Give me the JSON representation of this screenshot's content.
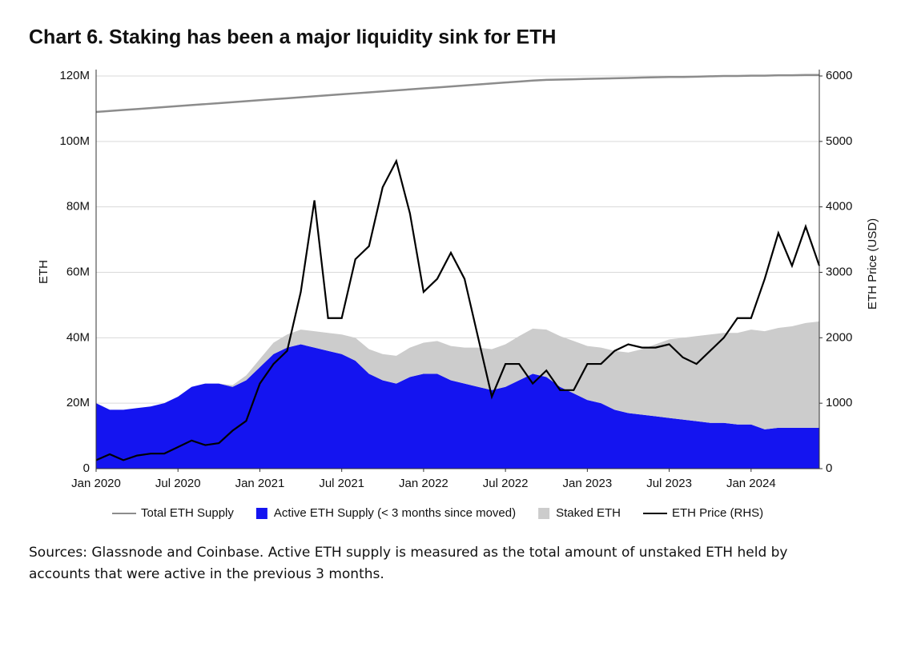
{
  "chart_data": {
    "type": "line",
    "title": "Chart 6. Staking has been a major liquidity sink for ETH",
    "ylabel": "ETH",
    "y2label": "ETH Price (USD)",
    "source": "Sources: Glassnode and Coinbase. Active ETH supply is measured as the total amount of unstaked ETH held by accounts that were active in the previous 3 months.",
    "x": [
      "2020-01",
      "2020-02",
      "2020-03",
      "2020-04",
      "2020-05",
      "2020-06",
      "2020-07",
      "2020-08",
      "2020-09",
      "2020-10",
      "2020-11",
      "2020-12",
      "2021-01",
      "2021-02",
      "2021-03",
      "2021-04",
      "2021-05",
      "2021-06",
      "2021-07",
      "2021-08",
      "2021-09",
      "2021-10",
      "2021-11",
      "2021-12",
      "2022-01",
      "2022-02",
      "2022-03",
      "2022-04",
      "2022-05",
      "2022-06",
      "2022-07",
      "2022-08",
      "2022-09",
      "2022-10",
      "2022-11",
      "2022-12",
      "2023-01",
      "2023-02",
      "2023-03",
      "2023-04",
      "2023-05",
      "2023-06",
      "2023-07",
      "2023-08",
      "2023-09",
      "2023-10",
      "2023-11",
      "2023-12",
      "2024-01",
      "2024-02",
      "2024-03",
      "2024-04",
      "2024-05",
      "2024-06"
    ],
    "xlim": [
      "2020-01",
      "2024-06"
    ],
    "xticks": [
      {
        "value": "2020-01",
        "label": "Jan 2020"
      },
      {
        "value": "2020-07",
        "label": "Jul 2020"
      },
      {
        "value": "2021-01",
        "label": "Jan 2021"
      },
      {
        "value": "2021-07",
        "label": "Jul 2021"
      },
      {
        "value": "2022-01",
        "label": "Jan 2022"
      },
      {
        "value": "2022-07",
        "label": "Jul 2022"
      },
      {
        "value": "2023-01",
        "label": "Jan 2023"
      },
      {
        "value": "2023-07",
        "label": "Jul 2023"
      },
      {
        "value": "2024-01",
        "label": "Jan 2024"
      }
    ],
    "ylim": [
      0,
      120
    ],
    "yticks": [
      0,
      {
        "value": 20,
        "label": "20M"
      },
      {
        "value": 40,
        "label": "40M"
      },
      {
        "value": 60,
        "label": "60M"
      },
      {
        "value": 80,
        "label": "80M"
      },
      {
        "value": 100,
        "label": "100M"
      },
      {
        "value": 120,
        "label": "120M"
      }
    ],
    "y2lim": [
      0,
      6000
    ],
    "y2ticks": [
      0,
      1000,
      2000,
      3000,
      4000,
      5000,
      6000
    ],
    "grid": true,
    "series": [
      {
        "name": "Total ETH Supply",
        "type": "line",
        "color": "#8c8c8c",
        "values": [
          109,
          109.3,
          109.6,
          109.9,
          110.2,
          110.5,
          110.8,
          111.1,
          111.4,
          111.7,
          112,
          112.3,
          112.6,
          112.9,
          113.2,
          113.5,
          113.8,
          114.1,
          114.4,
          114.7,
          115,
          115.3,
          115.6,
          115.9,
          116.2,
          116.5,
          116.8,
          117.1,
          117.4,
          117.7,
          118,
          118.3,
          118.6,
          118.8,
          118.9,
          119,
          119.1,
          119.2,
          119.3,
          119.4,
          119.5,
          119.6,
          119.7,
          119.7,
          119.8,
          119.9,
          120,
          120,
          120.1,
          120.1,
          120.2,
          120.2,
          120.3,
          120.3
        ]
      },
      {
        "name": "Active ETH Supply (< 3 months since moved)",
        "type": "area",
        "color": "#1414f0",
        "values": [
          20,
          18,
          18,
          18.5,
          19,
          20,
          22,
          25,
          26,
          26,
          25,
          27,
          31,
          35,
          37,
          38,
          37,
          36,
          35,
          33,
          29,
          27,
          26,
          28,
          29,
          29,
          27,
          26,
          25,
          24,
          25,
          27,
          29,
          28,
          25,
          23,
          21,
          20,
          18,
          17,
          16.5,
          16,
          15.5,
          15,
          14.5,
          14,
          14,
          13.5,
          13.5,
          12,
          12.5,
          12.5,
          12.5,
          12.5
        ]
      },
      {
        "name": "Staked ETH",
        "type": "area",
        "stack": true,
        "color": "#cccccc",
        "values": [
          0,
          0,
          0,
          0,
          0,
          0,
          0,
          0,
          0,
          0,
          0.5,
          1.5,
          2.5,
          3.5,
          4,
          4.5,
          5,
          5.5,
          6,
          7,
          7.5,
          8,
          8.5,
          9,
          9.5,
          10,
          10.5,
          11,
          12,
          12.5,
          13,
          13.5,
          13.8,
          14.5,
          15.5,
          16,
          16.5,
          17,
          18,
          18.5,
          20,
          22,
          24,
          25,
          26,
          27,
          27.5,
          28,
          29,
          30,
          30.5,
          31,
          32,
          32.5
        ]
      },
      {
        "name": "ETH Price (RHS)",
        "type": "line",
        "axis": "y2",
        "color": "#000000",
        "values": [
          130,
          220,
          130,
          200,
          230,
          230,
          330,
          430,
          360,
          390,
          580,
          730,
          1300,
          1600,
          1800,
          2700,
          4100,
          2300,
          2300,
          3200,
          3400,
          4300,
          4700,
          3900,
          2700,
          2900,
          3300,
          2900,
          2000,
          1100,
          1600,
          1600,
          1300,
          1500,
          1200,
          1200,
          1600,
          1600,
          1800,
          1900,
          1850,
          1850,
          1900,
          1700,
          1600,
          1800,
          2000,
          2300,
          2300,
          2900,
          3600,
          3100,
          3700,
          3100
        ]
      }
    ]
  }
}
